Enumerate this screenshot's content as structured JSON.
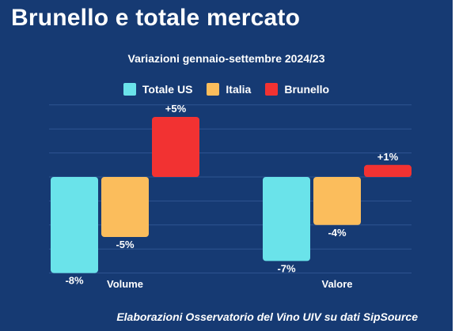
{
  "header": {
    "title": "Brunello e totale mercato"
  },
  "footer": {
    "source": "Elaborazioni Osservatorio del Vino UIV su dati SipSource"
  },
  "colors": {
    "background": "#163a73",
    "gridline": "#2f5592"
  },
  "chart_data": {
    "type": "bar",
    "title": "Variazioni gennaio-settembre 2024/23",
    "categories": [
      "Volume",
      "Valore"
    ],
    "series": [
      {
        "name": "Totale US",
        "values": [
          -8,
          -7
        ],
        "labels": [
          "-8%",
          "-7%"
        ],
        "color": "#6ae3ea"
      },
      {
        "name": "Italia",
        "values": [
          -5,
          -4
        ],
        "labels": [
          "-5%",
          "-4%"
        ],
        "color": "#fbbd5c"
      },
      {
        "name": "Brunello",
        "values": [
          5,
          1
        ],
        "labels": [
          "+5%",
          "+1%"
        ],
        "color": "#f23232"
      }
    ],
    "ylim": [
      -8,
      6
    ],
    "grid": true,
    "legend": "top-center"
  }
}
